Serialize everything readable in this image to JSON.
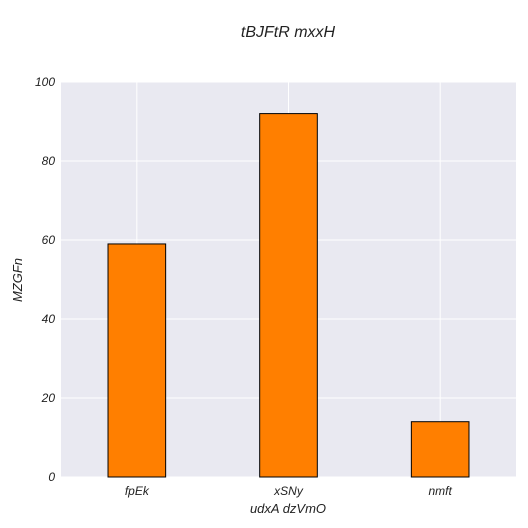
{
  "chart_data": {
    "type": "bar",
    "title": "tBJFtR mxxH",
    "xlabel": "udxA dzVmO",
    "ylabel": "MZGFn",
    "categories": [
      "fpEk",
      "xSNy",
      "nmft"
    ],
    "values": [
      59,
      92,
      14
    ],
    "ylim": [
      0,
      100
    ],
    "yticks": [
      0,
      20,
      40,
      60,
      80,
      100
    ],
    "grid": true,
    "colors": {
      "bar": "#ff7f00",
      "bar_edge": "#000000",
      "plot_background": "#e9e9f1",
      "grid": "#ffffff"
    }
  }
}
